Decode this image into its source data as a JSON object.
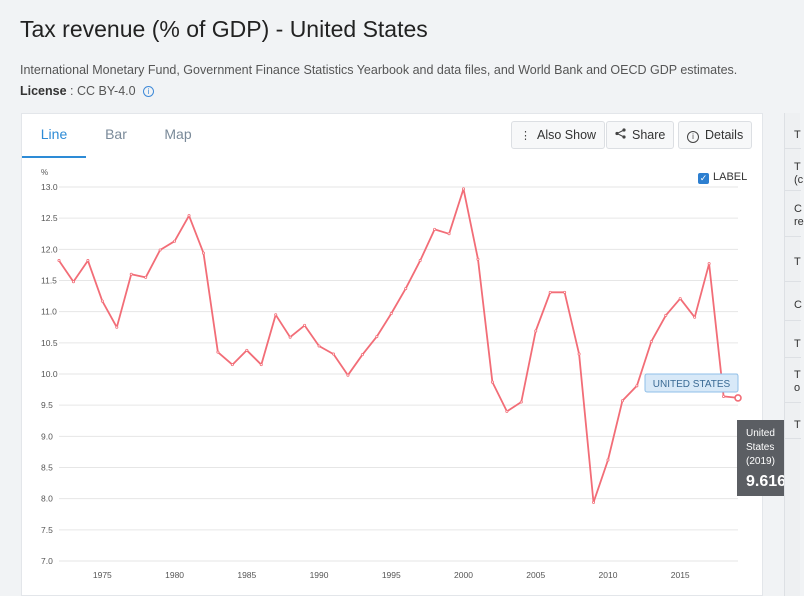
{
  "header": {
    "title": "Tax revenue (% of GDP) - United States",
    "source": "International Monetary Fund, Government Finance Statistics Yearbook and data files, and World Bank and OECD GDP estimates.",
    "license_label": "License",
    "license_value": ": CC BY-4.0"
  },
  "tabs": [
    {
      "label": "Line",
      "active": true
    },
    {
      "label": "Bar",
      "active": false
    },
    {
      "label": "Map",
      "active": false
    }
  ],
  "toolbar": {
    "also_show": "Also Show",
    "share": "Share",
    "details": "Details"
  },
  "label_toggle": {
    "text": "LABEL",
    "checked": true
  },
  "right_panel": [
    "T",
    "T\n(c",
    "C\nre",
    "T",
    "C",
    "T",
    "T\no",
    "T"
  ],
  "colors": {
    "line": "#f26d77",
    "accent": "#2d8bd6",
    "tooltip_bg": "#5b5e63",
    "label_bg": "#d8e9f8"
  },
  "chart_data": {
    "type": "line",
    "ylabel": "%",
    "ylim": [
      7.0,
      13.0
    ],
    "yticks": [
      "7.0",
      "7.5",
      "8.0",
      "8.5",
      "9.0",
      "9.5",
      "10.0",
      "10.5",
      "11.0",
      "11.5",
      "12.0",
      "12.5",
      "13.0"
    ],
    "xlim": [
      1972,
      2019
    ],
    "xticks": [
      "1975",
      "1980",
      "1985",
      "1990",
      "1995",
      "2000",
      "2005",
      "2010",
      "2015"
    ],
    "grid": true,
    "series": [
      {
        "name": "UNITED STATES",
        "x": [
          1972,
          1973,
          1974,
          1975,
          1976,
          1977,
          1978,
          1979,
          1980,
          1981,
          1982,
          1983,
          1984,
          1985,
          1986,
          1987,
          1988,
          1989,
          1990,
          1991,
          1992,
          1993,
          1994,
          1995,
          1996,
          1997,
          1998,
          1999,
          2000,
          2001,
          2002,
          2003,
          2004,
          2005,
          2006,
          2007,
          2008,
          2009,
          2010,
          2011,
          2012,
          2013,
          2014,
          2015,
          2016,
          2017,
          2018,
          2019
        ],
        "y": [
          11.82,
          11.48,
          11.82,
          11.17,
          10.75,
          11.6,
          11.55,
          11.99,
          12.13,
          12.54,
          11.94,
          10.35,
          10.15,
          10.38,
          10.15,
          10.95,
          10.59,
          10.78,
          10.45,
          10.32,
          9.98,
          10.31,
          10.6,
          10.97,
          11.37,
          11.82,
          12.32,
          12.25,
          12.97,
          11.84,
          9.87,
          9.4,
          9.55,
          10.69,
          11.31,
          11.31,
          10.32,
          7.94,
          8.62,
          9.57,
          9.81,
          10.52,
          10.94,
          11.21,
          10.91,
          11.77,
          9.64,
          9.616
        ]
      }
    ],
    "series_label": "UNITED STATES",
    "tooltip": {
      "line1": "United",
      "line2": "States",
      "line3": "(2019)",
      "value": "9.616"
    }
  }
}
